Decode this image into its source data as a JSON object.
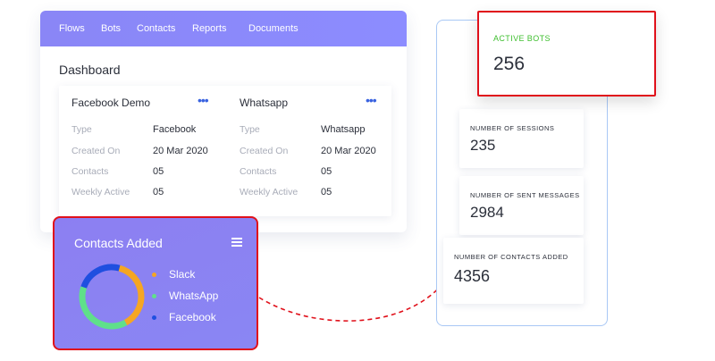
{
  "nav": {
    "items": [
      "Flows",
      "Bots",
      "Contacts",
      "Reports",
      "Documents"
    ]
  },
  "dashboard": {
    "title": "Dashboard",
    "cards": [
      {
        "name": "Facebook Demo",
        "more": "•••",
        "rows": [
          {
            "label": "Type",
            "value": "Facebook"
          },
          {
            "label": "Created On",
            "value": "20 Mar 2020"
          },
          {
            "label": "Contacts",
            "value": "05"
          },
          {
            "label": "Weekly Active",
            "value": "05"
          }
        ]
      },
      {
        "name": "Whatsapp",
        "more": "•••",
        "rows": [
          {
            "label": "Type",
            "value": "Whatsapp"
          },
          {
            "label": "Created On",
            "value": "20 Mar 2020"
          },
          {
            "label": "Contacts",
            "value": "05"
          },
          {
            "label": "Weekly Active",
            "value": "05"
          }
        ]
      }
    ]
  },
  "contacts_added": {
    "title": "Contacts Added",
    "menu_icon": "hamburger-icon",
    "legend": [
      {
        "label": "Slack",
        "color": "#f5a623"
      },
      {
        "label": "WhatsApp",
        "color": "#5fe08a"
      },
      {
        "label": "Facebook",
        "color": "#1f4fe0"
      }
    ],
    "chart_data": {
      "type": "pie",
      "categories": [
        "Slack",
        "WhatsApp",
        "Facebook"
      ],
      "values": [
        38,
        38,
        24
      ]
    }
  },
  "stats": {
    "active_bots": {
      "label": "ACTIVE BOTS",
      "value": "256"
    },
    "sessions": {
      "label": "NUMBER OF SESSIONS",
      "value": "235"
    },
    "sent_messages": {
      "label": "NUMBER OF SENT MESSAGES",
      "value": "2984"
    },
    "contacts_added": {
      "label": "NUMBER OF CONTACTS ADDED",
      "value": "4356"
    }
  },
  "colors": {
    "accent": "#8a86f6",
    "highlight_border": "#e0111b",
    "active_label": "#3fbf2f",
    "panel_border": "#a9c8f5"
  }
}
